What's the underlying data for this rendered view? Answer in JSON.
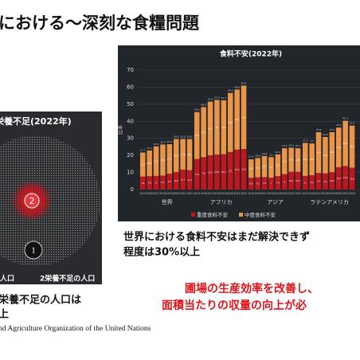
{
  "slide": {
    "title": "における～深刻な食糧問題",
    "left_panel": {
      "title": "栄養不足(2022年)",
      "marker_1": "1",
      "marker_2": "2",
      "legend_1": "人口",
      "legend_2": "2栄養不足の人口"
    },
    "left_caption": [
      "栄養不足の人口は",
      "上"
    ],
    "chart_caption": [
      "世界における食料不安はまだ解決できず",
      "程度は30%以上"
    ],
    "message": [
      "圃場の生産効率を改善し、",
      "面積当たりの収量の向上が必"
    ],
    "source": "nd Agriculture Organization of the United Nations"
  },
  "chart_data": {
    "type": "bar",
    "stacked": true,
    "title": "食料不安(2022年)",
    "ylabel": "比率",
    "groups": [
      "世界",
      "アフリカ",
      "アジア",
      "ラテンアメリカ"
    ],
    "categories": [
      "2015",
      "2016",
      "2017",
      "2018",
      "2019",
      "2020",
      "2021",
      "2022",
      "2015",
      "2016",
      "2017",
      "2018",
      "2019",
      "2020",
      "2021",
      "2022",
      "2015",
      "2016",
      "2017",
      "2018",
      "2019",
      "2020",
      "2021",
      "2022",
      "2015",
      "2016",
      "2017",
      "2018",
      "2019",
      "2020",
      "2021",
      "2022"
    ],
    "series": [
      {
        "name": "重度食料不安",
        "color": "#c0161d",
        "values": [
          7.6,
          7.8,
          8.0,
          8.2,
          9.3,
          10.3,
          11.7,
          11.3,
          17.9,
          19.0,
          20.1,
          20.5,
          20.7,
          22.0,
          23.4,
          23.8,
          6.9,
          7.2,
          7.3,
          7.0,
          7.9,
          9.0,
          10.4,
          10.4,
          8.0,
          8.4,
          9.7,
          9.5,
          10.2,
          13.1,
          13.8,
          12.8
        ]
      },
      {
        "name": "中度食料不安",
        "color": "#e8954a",
        "values": [
          14.1,
          15.1,
          17.3,
          18.2,
          17.3,
          19.3,
          17.9,
          18.3,
          27.5,
          29.3,
          31.4,
          32.0,
          31.6,
          34.6,
          35.2,
          37.1,
          10.8,
          11.3,
          12.3,
          12.0,
          12.7,
          15.2,
          14.1,
          13.8,
          19.3,
          18.6,
          23.9,
          21.3,
          23.4,
          23.2,
          26.5,
          24.7
        ]
      }
    ],
    "totals": [
      21.7,
      22.9,
      25.3,
      26.4,
      26.6,
      29.6,
      29.6,
      29.6,
      45.4,
      48.3,
      51.5,
      52.5,
      52.3,
      56.6,
      58.6,
      60.9,
      17.7,
      18.5,
      19.6,
      19.0,
      20.6,
      24.2,
      24.5,
      24.2,
      27.3,
      27.0,
      33.6,
      30.8,
      33.6,
      36.3,
      40.3,
      37.5
    ],
    "ylim": [
      0,
      70
    ],
    "yticks": [
      0,
      10,
      20,
      30,
      40,
      50,
      60,
      70
    ],
    "grid": true,
    "legend": "bottom"
  }
}
